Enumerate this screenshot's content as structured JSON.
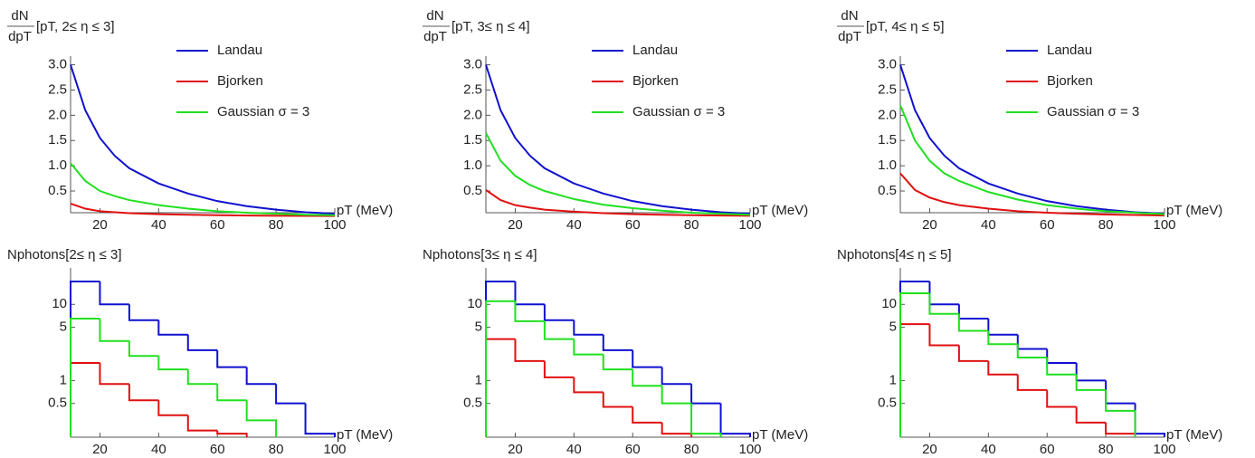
{
  "chart_data": [
    {
      "type": "line",
      "y_label_numerator": "dN",
      "y_label_denominator": "dpT",
      "title": "[pT, 2≤ η ≤ 3]",
      "x_label": "pT (MeV)",
      "x": [
        10,
        15,
        20,
        25,
        30,
        40,
        50,
        60,
        70,
        80,
        90,
        100
      ],
      "xlim": [
        10,
        100
      ],
      "xticks": [
        20,
        40,
        60,
        80,
        100
      ],
      "ylim": [
        0.07,
        3.1
      ],
      "yticks": [
        0.5,
        {
          "value": 1,
          "label": "1.0"
        },
        1.5,
        {
          "value": 2,
          "label": "2.0"
        },
        2.5,
        {
          "value": 3,
          "label": "3.0"
        }
      ],
      "series": [
        {
          "name": "Landau",
          "color": "#1010d0",
          "values": [
            3.0,
            2.1,
            1.55,
            1.2,
            0.95,
            0.65,
            0.45,
            0.3,
            0.2,
            0.13,
            0.08,
            0.05
          ]
        },
        {
          "name": "Bjorken",
          "color": "#e01010",
          "values": [
            0.25,
            0.15,
            0.1,
            0.08,
            0.06,
            0.04,
            0.03,
            0.02,
            0.015,
            0.01,
            0.008,
            0.005
          ]
        },
        {
          "name": "Gaussian σ = 3",
          "color": "#20e020",
          "values": [
            1.05,
            0.7,
            0.5,
            0.4,
            0.32,
            0.22,
            0.15,
            0.1,
            0.07,
            0.05,
            0.03,
            0.02
          ]
        }
      ]
    },
    {
      "type": "line",
      "y_label_numerator": "dN",
      "y_label_denominator": "dpT",
      "title": "[pT, 3≤ η ≤ 4]",
      "x_label": "pT (MeV)",
      "x": [
        10,
        15,
        20,
        25,
        30,
        40,
        50,
        60,
        70,
        80,
        90,
        100
      ],
      "xlim": [
        10,
        100
      ],
      "xticks": [
        20,
        40,
        60,
        80,
        100
      ],
      "ylim": [
        0.07,
        3.1
      ],
      "yticks": [
        0.5,
        {
          "value": 1,
          "label": "1.0"
        },
        1.5,
        {
          "value": 2,
          "label": "2.0"
        },
        2.5,
        {
          "value": 3,
          "label": "3.0"
        }
      ],
      "series": [
        {
          "name": "Landau",
          "color": "#1010d0",
          "values": [
            3.0,
            2.1,
            1.55,
            1.2,
            0.95,
            0.65,
            0.45,
            0.3,
            0.2,
            0.13,
            0.08,
            0.05
          ]
        },
        {
          "name": "Bjorken",
          "color": "#e01010",
          "values": [
            0.52,
            0.32,
            0.22,
            0.17,
            0.13,
            0.09,
            0.06,
            0.04,
            0.03,
            0.02,
            0.015,
            0.01
          ]
        },
        {
          "name": "Gaussian σ = 3",
          "color": "#20e020",
          "values": [
            1.65,
            1.1,
            0.8,
            0.62,
            0.5,
            0.34,
            0.23,
            0.16,
            0.11,
            0.07,
            0.05,
            0.03
          ]
        }
      ]
    },
    {
      "type": "line",
      "y_label_numerator": "dN",
      "y_label_denominator": "dpT",
      "title": "[pT, 4≤ η ≤ 5]",
      "x_label": "pT (MeV)",
      "x": [
        10,
        15,
        20,
        25,
        30,
        40,
        50,
        60,
        70,
        80,
        90,
        100
      ],
      "xlim": [
        10,
        100
      ],
      "xticks": [
        20,
        40,
        60,
        80,
        100
      ],
      "ylim": [
        0.07,
        3.1
      ],
      "yticks": [
        0.5,
        {
          "value": 1,
          "label": "1.0"
        },
        1.5,
        {
          "value": 2,
          "label": "2.0"
        },
        2.5,
        {
          "value": 3,
          "label": "3.0"
        }
      ],
      "series": [
        {
          "name": "Landau",
          "color": "#1010d0",
          "values": [
            3.0,
            2.1,
            1.55,
            1.2,
            0.95,
            0.65,
            0.45,
            0.3,
            0.2,
            0.13,
            0.08,
            0.05
          ]
        },
        {
          "name": "Bjorken",
          "color": "#e01010",
          "values": [
            0.85,
            0.52,
            0.37,
            0.28,
            0.22,
            0.15,
            0.1,
            0.07,
            0.05,
            0.035,
            0.025,
            0.015
          ]
        },
        {
          "name": "Gaussian σ = 3",
          "color": "#20e020",
          "values": [
            2.2,
            1.5,
            1.1,
            0.85,
            0.7,
            0.48,
            0.33,
            0.22,
            0.15,
            0.1,
            0.07,
            0.04
          ]
        }
      ]
    },
    {
      "type": "histogram",
      "title": "Nphotons[2≤ η ≤ 3]",
      "x_label": "pT (MeV)",
      "log_y": true,
      "bins": [
        10,
        20,
        30,
        40,
        50,
        60,
        70,
        80,
        90,
        100
      ],
      "xlim": [
        10,
        100
      ],
      "xticks": [
        20,
        40,
        60,
        80,
        100
      ],
      "ylim": [
        0.18,
        27
      ],
      "yticks": [
        0.5,
        1,
        5,
        10
      ],
      "series": [
        {
          "name": "Landau",
          "color": "#1010d0",
          "values": [
            20,
            10,
            6.2,
            4,
            2.5,
            1.5,
            0.9,
            0.5,
            0.2
          ]
        },
        {
          "name": "Bjorken",
          "color": "#e01010",
          "values": [
            1.7,
            0.9,
            0.55,
            0.35,
            0.22,
            0.2,
            null,
            null,
            null
          ]
        },
        {
          "name": "Gaussian σ = 3",
          "color": "#20e020",
          "values": [
            6.5,
            3.3,
            2.1,
            1.4,
            0.9,
            0.55,
            0.3,
            null,
            null
          ]
        }
      ]
    },
    {
      "type": "histogram",
      "title": "Nphotons[3≤ η ≤ 4]",
      "x_label": "pT (MeV)",
      "log_y": true,
      "bins": [
        10,
        20,
        30,
        40,
        50,
        60,
        70,
        80,
        90,
        100
      ],
      "xlim": [
        10,
        100
      ],
      "xticks": [
        20,
        40,
        60,
        80,
        100
      ],
      "ylim": [
        0.18,
        27
      ],
      "yticks": [
        0.5,
        1,
        5,
        10
      ],
      "series": [
        {
          "name": "Landau",
          "color": "#1010d0",
          "values": [
            20,
            10,
            6.2,
            4,
            2.5,
            1.5,
            0.9,
            0.5,
            0.2
          ]
        },
        {
          "name": "Bjorken",
          "color": "#e01010",
          "values": [
            3.5,
            1.8,
            1.1,
            0.7,
            0.45,
            0.28,
            0.2,
            null,
            null
          ]
        },
        {
          "name": "Gaussian σ = 3",
          "color": "#20e020",
          "values": [
            11,
            6,
            3.5,
            2.2,
            1.4,
            0.85,
            0.5,
            0.2,
            null
          ]
        }
      ]
    },
    {
      "type": "histogram",
      "title": "Nphotons[4≤ η ≤ 5]",
      "x_label": "pT (MeV)",
      "log_y": true,
      "bins": [
        10,
        20,
        30,
        40,
        50,
        60,
        70,
        80,
        90,
        100
      ],
      "xlim": [
        10,
        100
      ],
      "xticks": [
        20,
        40,
        60,
        80,
        100
      ],
      "ylim": [
        0.18,
        27
      ],
      "yticks": [
        0.5,
        1,
        5,
        10
      ],
      "series": [
        {
          "name": "Landau",
          "color": "#1010d0",
          "values": [
            20,
            10,
            6.5,
            4,
            2.6,
            1.7,
            1,
            0.5,
            0.2
          ]
        },
        {
          "name": "Bjorken",
          "color": "#e01010",
          "values": [
            5.5,
            2.9,
            1.8,
            1.2,
            0.75,
            0.45,
            0.28,
            0.2,
            null
          ]
        },
        {
          "name": "Gaussian σ = 3",
          "color": "#20e020",
          "values": [
            14,
            7.5,
            4.5,
            3,
            2,
            1.2,
            0.75,
            0.4,
            null
          ]
        }
      ]
    }
  ]
}
